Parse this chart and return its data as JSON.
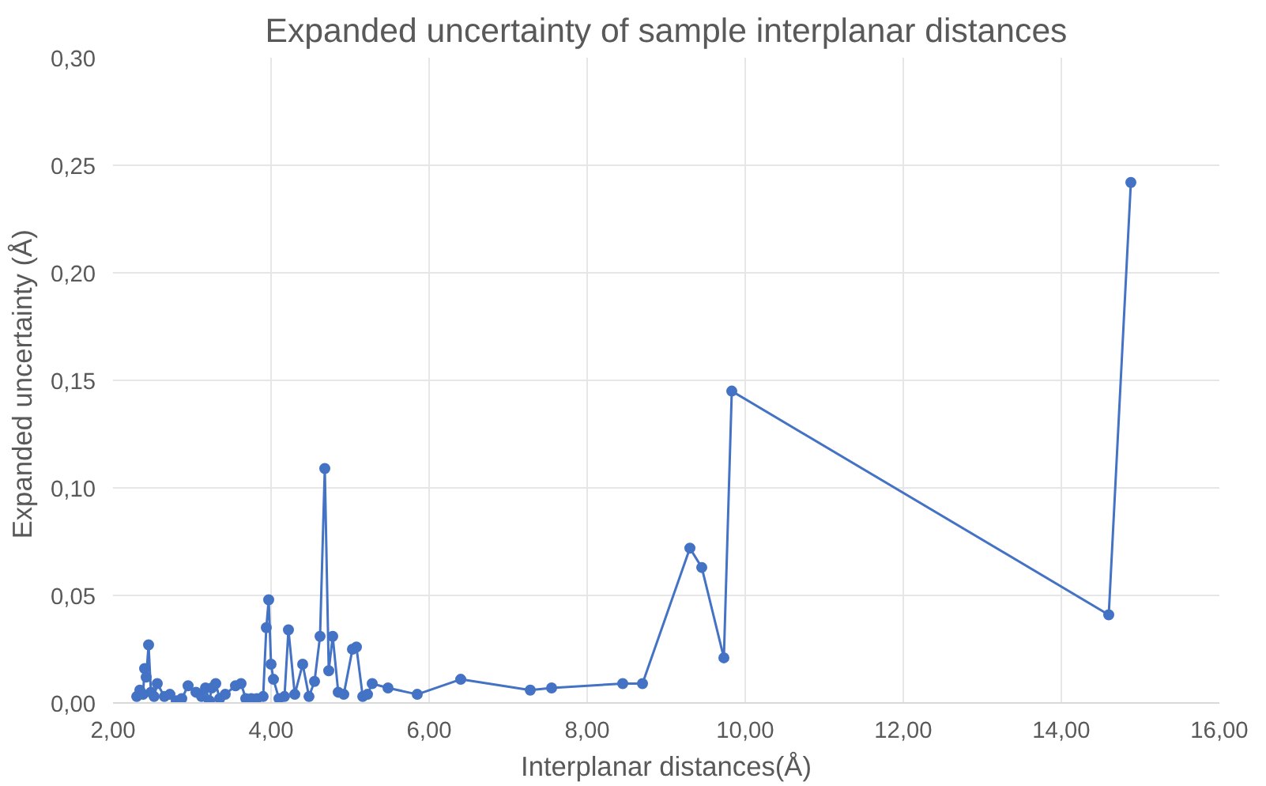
{
  "chart_data": {
    "type": "line",
    "title": "Expanded uncertainty of sample interplanar distances",
    "xlabel": "Interplanar distances(Å)",
    "ylabel": "Expanded uncertainty  (Å)",
    "series": [
      {
        "color": "#4472c4",
        "x": [
          2.3,
          2.34,
          2.38,
          2.4,
          2.42,
          2.45,
          2.48,
          2.52,
          2.56,
          2.65,
          2.72,
          2.8,
          2.87,
          2.95,
          3.05,
          3.12,
          3.17,
          3.22,
          3.25,
          3.3,
          3.35,
          3.42,
          3.55,
          3.62,
          3.68,
          3.75,
          3.82,
          3.9,
          3.94,
          3.97,
          4.0,
          4.03,
          4.1,
          4.17,
          4.22,
          4.3,
          4.4,
          4.48,
          4.55,
          4.62,
          4.68,
          4.73,
          4.78,
          4.85,
          4.92,
          5.03,
          5.08,
          5.16,
          5.22,
          5.28,
          5.48,
          5.85,
          6.4,
          7.28,
          7.55,
          8.45,
          8.7,
          9.3,
          9.45,
          9.73,
          9.83,
          14.6,
          14.88
        ],
        "values": [
          0.003,
          0.006,
          0.004,
          0.016,
          0.012,
          0.027,
          0.005,
          0.003,
          0.009,
          0.003,
          0.004,
          0.001,
          0.002,
          0.008,
          0.005,
          0.003,
          0.007,
          0.001,
          0.007,
          0.009,
          0.002,
          0.004,
          0.008,
          0.009,
          0.002,
          0.002,
          0.002,
          0.003,
          0.035,
          0.048,
          0.018,
          0.011,
          0.002,
          0.003,
          0.034,
          0.004,
          0.018,
          0.003,
          0.01,
          0.031,
          0.109,
          0.015,
          0.031,
          0.005,
          0.004,
          0.025,
          0.026,
          0.003,
          0.004,
          0.009,
          0.007,
          0.004,
          0.011,
          0.006,
          0.007,
          0.009,
          0.009,
          0.072,
          0.063,
          0.021,
          0.145,
          0.041,
          0.242
        ]
      }
    ],
    "xlim": [
      2,
      16
    ],
    "ylim": [
      0,
      0.3
    ],
    "xticks": [
      {
        "value": 2,
        "label": "2,00"
      },
      {
        "value": 4,
        "label": "4,00"
      },
      {
        "value": 6,
        "label": "6,00"
      },
      {
        "value": 8,
        "label": "8,00"
      },
      {
        "value": 10,
        "label": "10,00"
      },
      {
        "value": 12,
        "label": "12,00"
      },
      {
        "value": 14,
        "label": "14,00"
      },
      {
        "value": 16,
        "label": "16,00"
      }
    ],
    "yticks": [
      {
        "value": 0,
        "label": "0,00"
      },
      {
        "value": 0.05,
        "label": "0,05"
      },
      {
        "value": 0.1,
        "label": "0,10"
      },
      {
        "value": 0.15,
        "label": "0,15"
      },
      {
        "value": 0.2,
        "label": "0,20"
      },
      {
        "value": 0.25,
        "label": "0,25"
      },
      {
        "value": 0.3,
        "label": "0,30"
      }
    ],
    "grid": true,
    "marker": "circle",
    "line_style": "solid"
  }
}
